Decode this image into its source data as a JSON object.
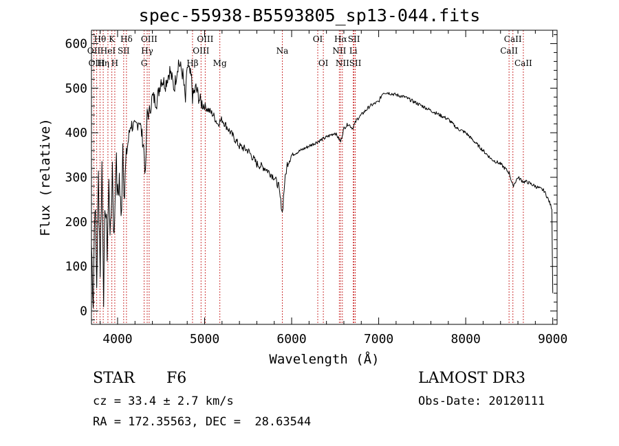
{
  "chart_data": {
    "type": "line",
    "title": "spec-55938-B5593805_sp13-044.fits",
    "xlabel": "Wavelength (Å)",
    "ylabel": "Flux (relative)",
    "xlim": [
      3700,
      9050
    ],
    "ylim": [
      -30,
      630
    ],
    "xticks": [
      4000,
      5000,
      6000,
      7000,
      8000,
      9000
    ],
    "yticks": [
      0,
      100,
      200,
      300,
      400,
      500,
      600
    ],
    "series": [
      {
        "name": "spectrum",
        "x": [
          3700,
          3720,
          3740,
          3760,
          3780,
          3800,
          3820,
          3840,
          3860,
          3880,
          3900,
          3920,
          3940,
          3960,
          3980,
          4000,
          4020,
          4040,
          4060,
          4080,
          4100,
          4150,
          4200,
          4250,
          4300,
          4320,
          4340,
          4360,
          4400,
          4450,
          4500,
          4550,
          4600,
          4650,
          4700,
          4750,
          4780,
          4800,
          4850,
          4861,
          4900,
          4950,
          5000,
          5050,
          5100,
          5150,
          5200,
          5300,
          5400,
          5500,
          5600,
          5700,
          5800,
          5850,
          5893,
          5920,
          5950,
          6000,
          6100,
          6200,
          6300,
          6400,
          6500,
          6563,
          6600,
          6650,
          6700,
          6750,
          6800,
          6900,
          7000,
          7050,
          7100,
          7200,
          7300,
          7400,
          7500,
          7600,
          7700,
          7800,
          7900,
          8000,
          8100,
          8200,
          8300,
          8400,
          8500,
          8542,
          8600,
          8662,
          8700,
          8800,
          8900,
          8950,
          8990,
          9000
        ],
        "y": [
          150,
          30,
          260,
          60,
          300,
          100,
          330,
          50,
          250,
          140,
          280,
          160,
          330,
          150,
          350,
          250,
          300,
          200,
          380,
          260,
          350,
          420,
          410,
          430,
          370,
          300,
          450,
          440,
          480,
          470,
          520,
          510,
          540,
          500,
          560,
          530,
          470,
          550,
          520,
          480,
          500,
          470,
          460,
          450,
          440,
          420,
          430,
          400,
          370,
          360,
          330,
          320,
          300,
          280,
          220,
          290,
          330,
          350,
          360,
          370,
          380,
          390,
          400,
          380,
          410,
          420,
          410,
          430,
          440,
          460,
          470,
          490,
          490,
          485,
          480,
          470,
          460,
          450,
          440,
          430,
          410,
          400,
          380,
          360,
          340,
          330,
          310,
          280,
          300,
          290,
          290,
          280,
          270,
          250,
          230,
          40
        ]
      }
    ],
    "spectral_lines": [
      {
        "name": "Hθ",
        "wavelength": 3798,
        "row": 0
      },
      {
        "name": "OII",
        "wavelength": 3727,
        "row": 1
      },
      {
        "name": "OIII",
        "wavelength": 3760,
        "row": 2
      },
      {
        "name": "Hη",
        "wavelength": 3835,
        "row": 2
      },
      {
        "name": "K",
        "wavelength": 3934,
        "row": 0
      },
      {
        "name": "HeI",
        "wavelength": 3889,
        "row": 1
      },
      {
        "name": "H",
        "wavelength": 3968,
        "row": 2
      },
      {
        "name": "SII",
        "wavelength": 4070,
        "row": 1
      },
      {
        "name": "Hδ",
        "wavelength": 4102,
        "row": 0
      },
      {
        "name": "OIII",
        "wavelength": 4363,
        "row": 0
      },
      {
        "name": "Hγ",
        "wavelength": 4340,
        "row": 1
      },
      {
        "name": "G",
        "wavelength": 4305,
        "row": 2
      },
      {
        "name": "Hβ",
        "wavelength": 4861,
        "row": 2
      },
      {
        "name": "OIII",
        "wavelength": 5007,
        "row": 0
      },
      {
        "name": "OIII",
        "wavelength": 4959,
        "row": 1
      },
      {
        "name": "Mg",
        "wavelength": 5175,
        "row": 2
      },
      {
        "name": "Na",
        "wavelength": 5893,
        "row": 1
      },
      {
        "name": "OI",
        "wavelength": 6300,
        "row": 0
      },
      {
        "name": "OI",
        "wavelength": 6364,
        "row": 2
      },
      {
        "name": "Hα",
        "wavelength": 6563,
        "row": 0
      },
      {
        "name": "NII",
        "wavelength": 6548,
        "row": 1
      },
      {
        "name": "NII",
        "wavelength": 6583,
        "row": 2
      },
      {
        "name": "SII",
        "wavelength": 6716,
        "row": 0
      },
      {
        "name": "Li",
        "wavelength": 6708,
        "row": 1
      },
      {
        "name": "SII",
        "wavelength": 6731,
        "row": 2
      },
      {
        "name": "CaII",
        "wavelength": 8542,
        "row": 0
      },
      {
        "name": "CaII",
        "wavelength": 8498,
        "row": 1
      },
      {
        "name": "CaII",
        "wavelength": 8662,
        "row": 2
      }
    ]
  },
  "info": {
    "class": "STAR",
    "subclass": "F6",
    "survey": "LAMOST DR3",
    "cz": "cz = 33.4 ± 2.7 km/s",
    "obs_date": "Obs-Date: 20120111",
    "coords": "RA = 172.35563, DEC =  28.63544"
  },
  "colors": {
    "line_marker": "#cc3333",
    "spectrum": "#000000"
  }
}
